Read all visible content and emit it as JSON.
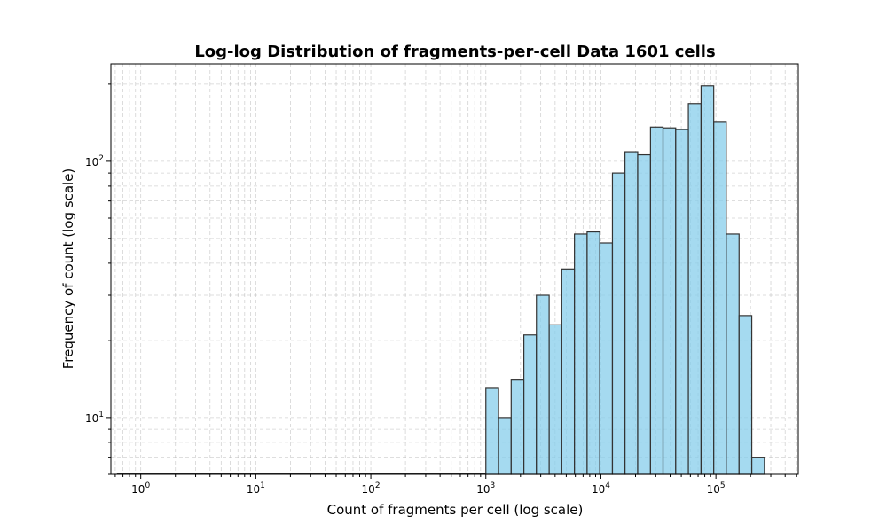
{
  "chart_data": {
    "type": "bar",
    "title": "Log-log Distribution of fragments-per-cell Data 1601 cells",
    "xlabel": "Count of fragments per cell (log scale)",
    "ylabel": "Frequency of count (log scale)",
    "xscale": "log",
    "yscale": "log",
    "xlim": [
      0.55,
      520000
    ],
    "ylim": [
      6,
      240
    ],
    "grid": true,
    "grid_minor": true,
    "x_ticks": [
      {
        "base": "10",
        "exp": "0",
        "value": 1
      },
      {
        "base": "10",
        "exp": "1",
        "value": 10
      },
      {
        "base": "10",
        "exp": "2",
        "value": 100
      },
      {
        "base": "10",
        "exp": "3",
        "value": 1000
      },
      {
        "base": "10",
        "exp": "4",
        "value": 10000
      },
      {
        "base": "10",
        "exp": "5",
        "value": 100000
      }
    ],
    "y_ticks": [
      {
        "base": "10",
        "exp": "1",
        "value": 10
      },
      {
        "base": "10",
        "exp": "2",
        "value": 100
      }
    ],
    "bar_color": "#87CEEB",
    "edge_color": "#333333",
    "bins": [
      {
        "x0": 0.0,
        "x1": 1000,
        "count": 0
      },
      {
        "x0": 1000,
        "x1": 1290,
        "count": 13
      },
      {
        "x0": 1290,
        "x1": 1660,
        "count": 10
      },
      {
        "x0": 1660,
        "x1": 2140,
        "count": 14
      },
      {
        "x0": 2140,
        "x1": 2750,
        "count": 21
      },
      {
        "x0": 2750,
        "x1": 3550,
        "count": 30
      },
      {
        "x0": 3550,
        "x1": 4570,
        "count": 23
      },
      {
        "x0": 4570,
        "x1": 5890,
        "count": 38
      },
      {
        "x0": 5890,
        "x1": 7590,
        "count": 52
      },
      {
        "x0": 7590,
        "x1": 9780,
        "count": 53
      },
      {
        "x0": 9780,
        "x1": 12600,
        "count": 48
      },
      {
        "x0": 12600,
        "x1": 16200,
        "count": 90
      },
      {
        "x0": 16200,
        "x1": 20900,
        "count": 109
      },
      {
        "x0": 20900,
        "x1": 27000,
        "count": 106
      },
      {
        "x0": 27000,
        "x1": 34700,
        "count": 136
      },
      {
        "x0": 34700,
        "x1": 44700,
        "count": 135
      },
      {
        "x0": 44700,
        "x1": 57600,
        "count": 133
      },
      {
        "x0": 57600,
        "x1": 74300,
        "count": 168
      },
      {
        "x0": 74300,
        "x1": 95700,
        "count": 197
      },
      {
        "x0": 95700,
        "x1": 123000,
        "count": 142
      },
      {
        "x0": 123000,
        "x1": 159000,
        "count": 52
      },
      {
        "x0": 159000,
        "x1": 205000,
        "count": 25
      },
      {
        "x0": 205000,
        "x1": 264000,
        "count": 7
      }
    ]
  }
}
